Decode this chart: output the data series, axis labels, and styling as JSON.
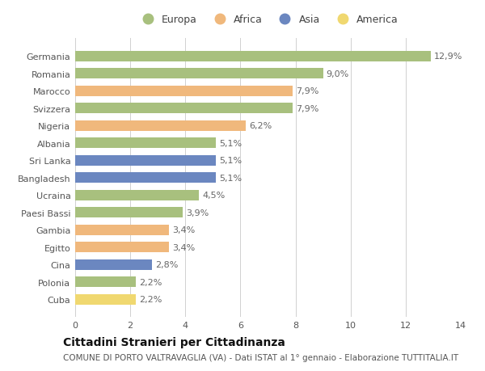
{
  "categories": [
    "Germania",
    "Romania",
    "Marocco",
    "Svizzera",
    "Nigeria",
    "Albania",
    "Sri Lanka",
    "Bangladesh",
    "Ucraina",
    "Paesi Bassi",
    "Gambia",
    "Egitto",
    "Cina",
    "Polonia",
    "Cuba"
  ],
  "values": [
    12.9,
    9.0,
    7.9,
    7.9,
    6.2,
    5.1,
    5.1,
    5.1,
    4.5,
    3.9,
    3.4,
    3.4,
    2.8,
    2.2,
    2.2
  ],
  "labels": [
    "12,9%",
    "9,0%",
    "7,9%",
    "7,9%",
    "6,2%",
    "5,1%",
    "5,1%",
    "5,1%",
    "4,5%",
    "3,9%",
    "3,4%",
    "3,4%",
    "2,8%",
    "2,2%",
    "2,2%"
  ],
  "continents": [
    "Europa",
    "Europa",
    "Africa",
    "Europa",
    "Africa",
    "Europa",
    "Asia",
    "Asia",
    "Europa",
    "Europa",
    "Africa",
    "Africa",
    "Asia",
    "Europa",
    "America"
  ],
  "colors": {
    "Europa": "#a8c07e",
    "Africa": "#f0b87c",
    "Asia": "#6b87c0",
    "America": "#f0d870"
  },
  "xlim": [
    0,
    14
  ],
  "xticks": [
    0,
    2,
    4,
    6,
    8,
    10,
    12,
    14
  ],
  "title": "Cittadini Stranieri per Cittadinanza",
  "subtitle": "COMUNE DI PORTO VALTRAVAGLIA (VA) - Dati ISTAT al 1° gennaio - Elaborazione TUTTITALIA.IT",
  "background_color": "#ffffff",
  "bar_height": 0.6,
  "grid_color": "#d0d0d0",
  "label_fontsize": 8,
  "tick_fontsize": 8,
  "title_fontsize": 10,
  "subtitle_fontsize": 7.5
}
